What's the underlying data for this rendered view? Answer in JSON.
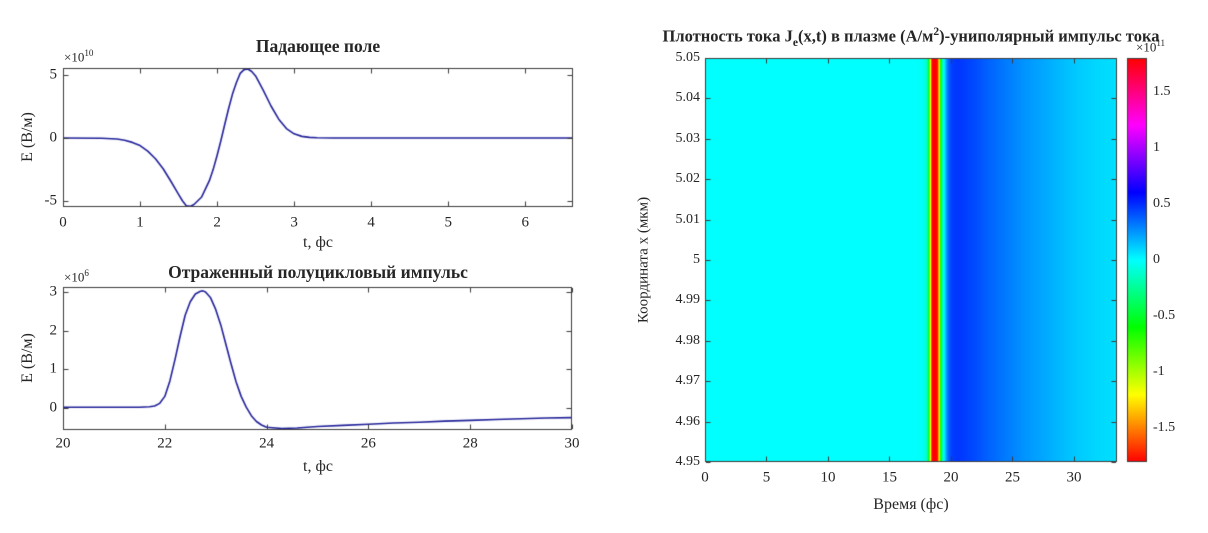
{
  "figure": {
    "background": "#ffffff",
    "text_color": "#262626",
    "axis_color": "#3c3c3c",
    "line_color": "#22229a"
  },
  "chart_data": [
    {
      "id": "incident-field",
      "type": "line",
      "title": "Падающее поле",
      "xlabel": "t, фс",
      "ylabel": "E (В/м)",
      "y_offset": {
        "base": "×10",
        "exp": "10"
      },
      "y_unit_scale": 10000000000.0,
      "xlim": [
        0,
        6.62
      ],
      "ylim": [
        -5.5,
        5.58
      ],
      "xtick_values": [
        0,
        1,
        2,
        3,
        4,
        5,
        6
      ],
      "xtick_labels": [
        "0",
        "1",
        "2",
        "3",
        "4",
        "5",
        "6"
      ],
      "ytick_values": [
        -5,
        0,
        5
      ],
      "ytick_labels": [
        "-5",
        "0",
        "5"
      ],
      "x": [
        0,
        0.5,
        0.7,
        0.8,
        0.9,
        1.0,
        1.1,
        1.2,
        1.3,
        1.4,
        1.5,
        1.55,
        1.6,
        1.65,
        1.7,
        1.8,
        1.9,
        1.95,
        2.0,
        2.05,
        2.1,
        2.15,
        2.2,
        2.25,
        2.3,
        2.35,
        2.4,
        2.45,
        2.5,
        2.6,
        2.7,
        2.8,
        2.9,
        3.0,
        3.1,
        3.2,
        3.3,
        3.5,
        4.0,
        5.0,
        6.62
      ],
      "y": [
        0,
        -0.02,
        -0.08,
        -0.18,
        -0.35,
        -0.6,
        -1.05,
        -1.65,
        -2.45,
        -3.45,
        -4.5,
        -5.0,
        -5.4,
        -5.45,
        -5.3,
        -4.7,
        -3.4,
        -2.5,
        -1.4,
        -0.2,
        1.1,
        2.35,
        3.5,
        4.4,
        5.15,
        5.45,
        5.5,
        5.3,
        4.95,
        3.8,
        2.55,
        1.5,
        0.75,
        0.33,
        0.13,
        0.05,
        0.02,
        0,
        0,
        0,
        0
      ]
    },
    {
      "id": "reflected-pulse",
      "type": "line",
      "title": "Отраженный полуцикловый импульс",
      "xlabel": "t, фс",
      "ylabel": "E (В/м)",
      "y_offset": {
        "base": "×10",
        "exp": "6"
      },
      "y_unit_scale": 1000000.0,
      "xlim": [
        20,
        30
      ],
      "ylim": [
        -0.57,
        3.13
      ],
      "xtick_values": [
        20,
        22,
        24,
        26,
        28,
        30
      ],
      "xtick_labels": [
        "20",
        "22",
        "24",
        "26",
        "28",
        "30"
      ],
      "ytick_values": [
        0,
        1,
        2,
        3
      ],
      "ytick_labels": [
        "0",
        "1",
        "2",
        "3"
      ],
      "x": [
        20,
        21.0,
        21.5,
        21.7,
        21.8,
        21.9,
        22.0,
        22.1,
        22.2,
        22.3,
        22.4,
        22.5,
        22.6,
        22.7,
        22.75,
        22.8,
        22.9,
        23.0,
        23.1,
        23.2,
        23.3,
        23.4,
        23.5,
        23.6,
        23.7,
        23.8,
        23.9,
        24.0,
        24.3,
        24.6,
        25.0,
        25.5,
        26.0,
        26.5,
        27.0,
        27.5,
        28.0,
        28.5,
        29.0,
        29.5,
        30.0
      ],
      "y": [
        0.02,
        0.02,
        0.02,
        0.03,
        0.05,
        0.12,
        0.3,
        0.7,
        1.25,
        1.85,
        2.4,
        2.75,
        2.95,
        3.02,
        3.03,
        3.0,
        2.85,
        2.55,
        2.15,
        1.65,
        1.15,
        0.68,
        0.3,
        0.02,
        -0.2,
        -0.35,
        -0.44,
        -0.5,
        -0.53,
        -0.52,
        -0.48,
        -0.45,
        -0.42,
        -0.39,
        -0.37,
        -0.34,
        -0.32,
        -0.3,
        -0.28,
        -0.26,
        -0.25
      ]
    },
    {
      "id": "current-density-map",
      "type": "heatmap",
      "title_parts": {
        "prefix": "Плотность тока J",
        "sub": "e",
        "mid": "(x,t) в плазме (А/м",
        "sup": "2",
        "suffix": ")-униполярный импульс тока"
      },
      "xlabel": "Время (фс)",
      "ylabel": "Координата x (мкм)",
      "xlim": [
        0,
        33.5
      ],
      "ylim": [
        4.95,
        5.05
      ],
      "xtick_values": [
        0,
        5,
        10,
        15,
        20,
        25,
        30
      ],
      "xtick_labels": [
        "0",
        "5",
        "10",
        "15",
        "20",
        "25",
        "30"
      ],
      "ytick_values": [
        5.05,
        5.04,
        5.03,
        5.02,
        5.01,
        5.0,
        4.99,
        4.98,
        4.97,
        4.96,
        4.95
      ],
      "ytick_labels": [
        "5.05",
        "5.04",
        "5.03",
        "5.02",
        "5.01",
        "5",
        "4.99",
        "4.98",
        "4.97",
        "4.96",
        "4.95"
      ],
      "colormap": "hsv",
      "colorbar": {
        "clim": [
          -1.8,
          1.8
        ],
        "tick_values": [
          1.5,
          1,
          0.5,
          0,
          -0.5,
          -1,
          -1.5
        ],
        "tick_labels": [
          "1.5",
          "1",
          "0.5",
          "0",
          "-0.5",
          "-1",
          "-1.5"
        ],
        "offset": {
          "base": "×10",
          "exp": "11"
        },
        "unit_scale": 100000000000.0
      },
      "profile_note": "J is uniform along x; values in units of 1e11 A/m^2 vs time t (fs)",
      "profile_t": [
        0,
        17.0,
        17.5,
        17.8,
        18.0,
        18.1,
        18.2,
        18.3,
        18.4,
        18.45,
        18.5,
        18.6,
        18.7,
        18.8,
        18.9,
        18.95,
        19.0,
        19.1,
        19.2,
        19.3,
        19.4,
        19.5,
        19.6,
        19.7,
        19.8,
        20.0,
        20.3,
        20.6,
        21.0,
        21.5,
        22.0,
        23.0,
        24.0,
        25.0,
        26.0,
        27.0,
        28.0,
        29.0,
        30.0,
        31.0,
        32.0,
        33.0,
        33.5
      ],
      "profile_J": [
        0,
        0,
        -0.01,
        -0.04,
        -0.12,
        -0.25,
        -0.55,
        -1.0,
        -1.55,
        -1.75,
        -1.8,
        -1.8,
        -1.8,
        -1.8,
        -1.75,
        -1.6,
        -1.35,
        -0.85,
        -0.45,
        -0.2,
        -0.05,
        0.08,
        0.2,
        0.3,
        0.37,
        0.44,
        0.47,
        0.47,
        0.46,
        0.44,
        0.42,
        0.37,
        0.33,
        0.29,
        0.25,
        0.22,
        0.19,
        0.16,
        0.13,
        0.11,
        0.09,
        0.08,
        0.07
      ]
    }
  ]
}
